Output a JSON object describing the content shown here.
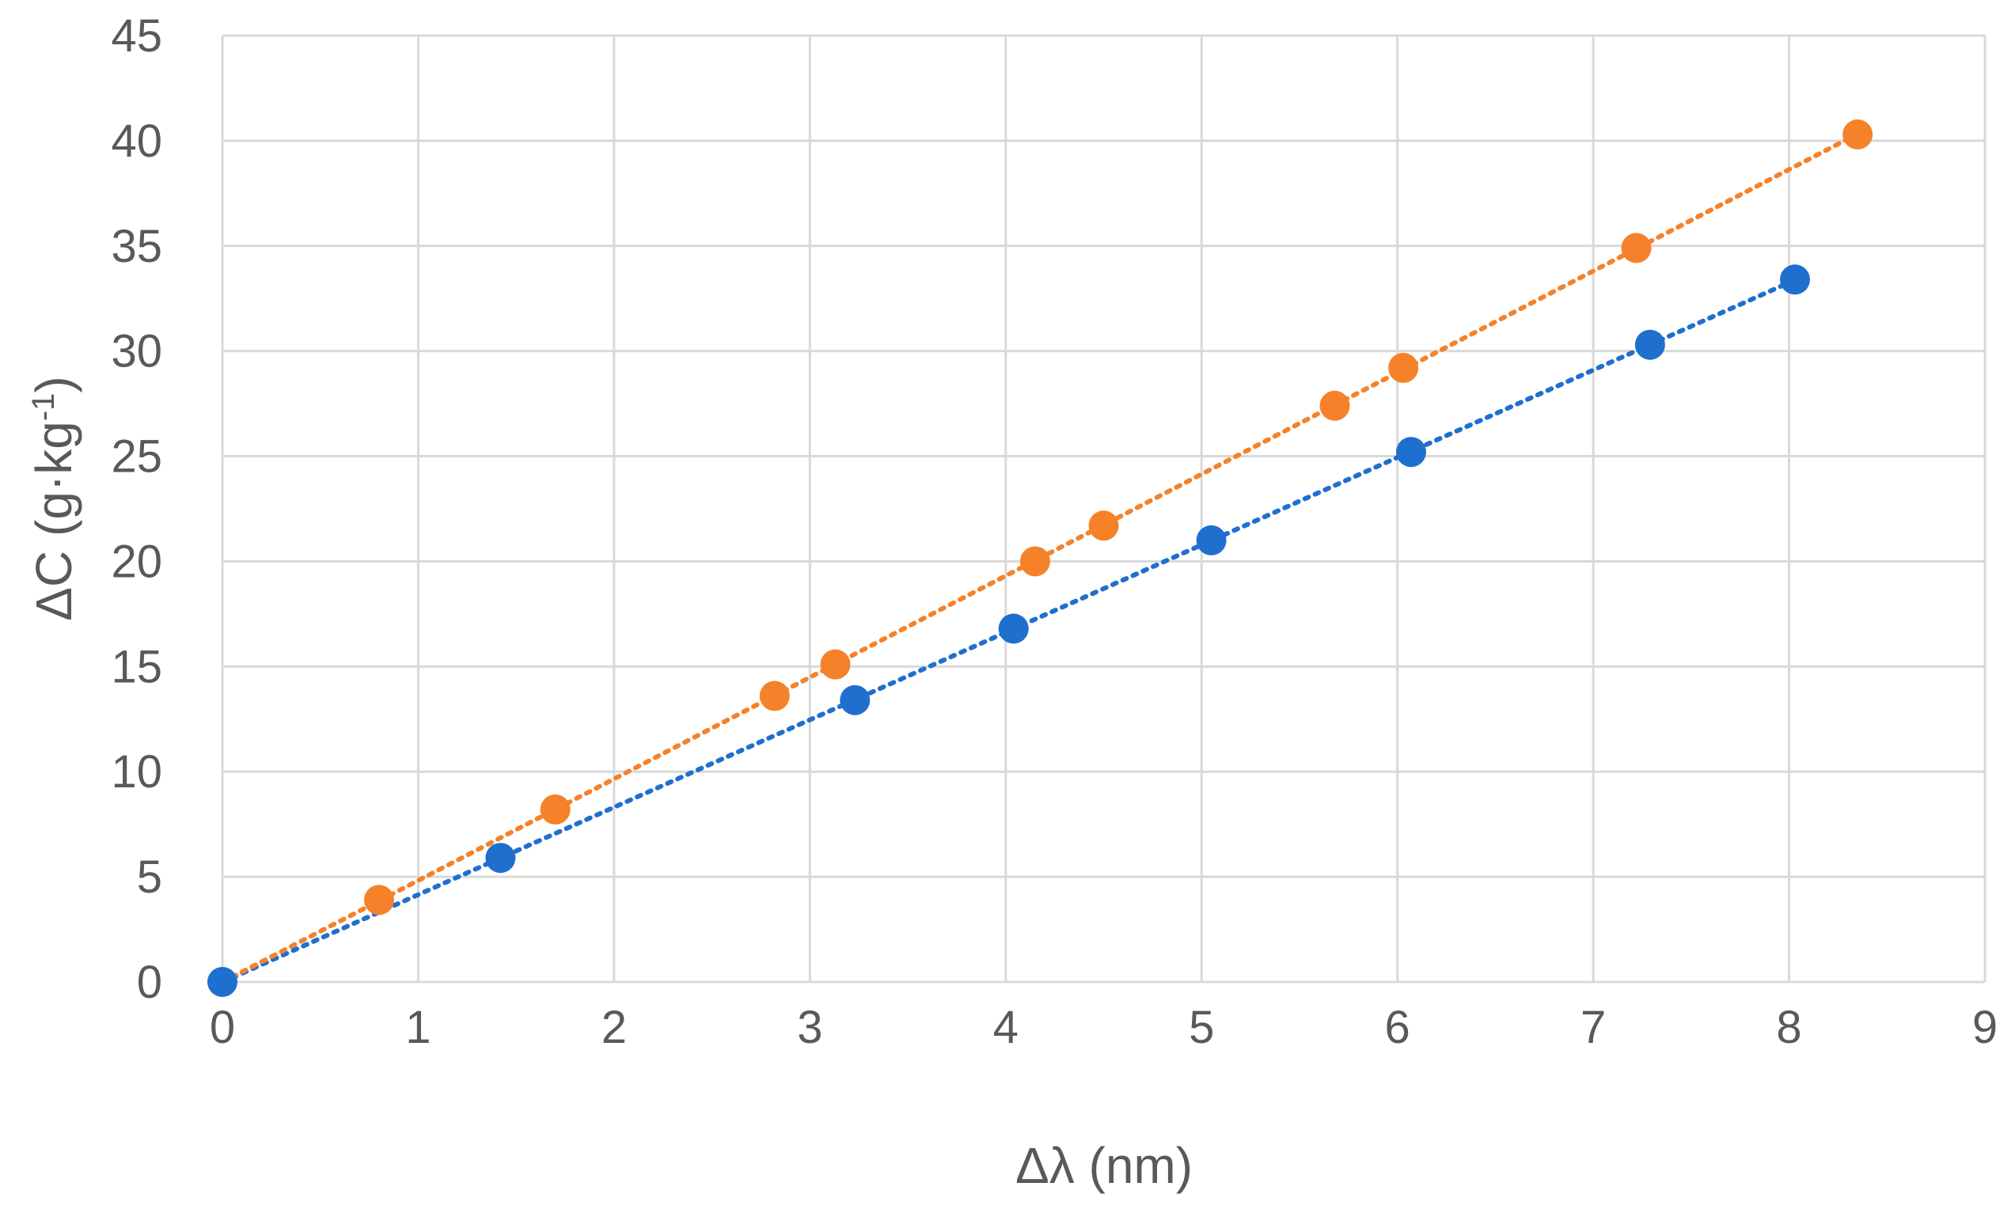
{
  "chart_data": {
    "type": "scatter",
    "title": "",
    "xlabel": "Δλ (nm)",
    "ylabel_main": "ΔC (g·kg",
    "ylabel_sup": "-1",
    "ylabel_close": ")",
    "xlim": [
      0,
      9
    ],
    "ylim": [
      0,
      45
    ],
    "xticks": [
      0,
      1,
      2,
      3,
      4,
      5,
      6,
      7,
      8,
      9
    ],
    "yticks": [
      0,
      5,
      10,
      15,
      20,
      25,
      30,
      35,
      40,
      45
    ],
    "grid": true,
    "legend": "none",
    "series": [
      {
        "name": "series-blue",
        "color": "#1f6fcf",
        "x": [
          0,
          1.42,
          3.23,
          4.04,
          5.05,
          6.07,
          7.29,
          8.03
        ],
        "y": [
          0,
          5.9,
          13.4,
          16.8,
          21.0,
          25.2,
          30.3,
          33.4
        ],
        "trendline": {
          "type": "linear-dotted",
          "x": [
            0,
            8.03
          ]
        }
      },
      {
        "name": "series-orange",
        "color": "#f5822a",
        "x": [
          0.8,
          1.7,
          2.82,
          3.13,
          4.15,
          4.5,
          5.68,
          6.03,
          7.22,
          8.35
        ],
        "y": [
          3.9,
          8.2,
          13.6,
          15.1,
          20.0,
          21.7,
          27.4,
          29.2,
          34.9,
          40.3
        ],
        "trendline": {
          "type": "linear-dotted",
          "x": [
            0,
            8.35
          ]
        }
      }
    ]
  }
}
